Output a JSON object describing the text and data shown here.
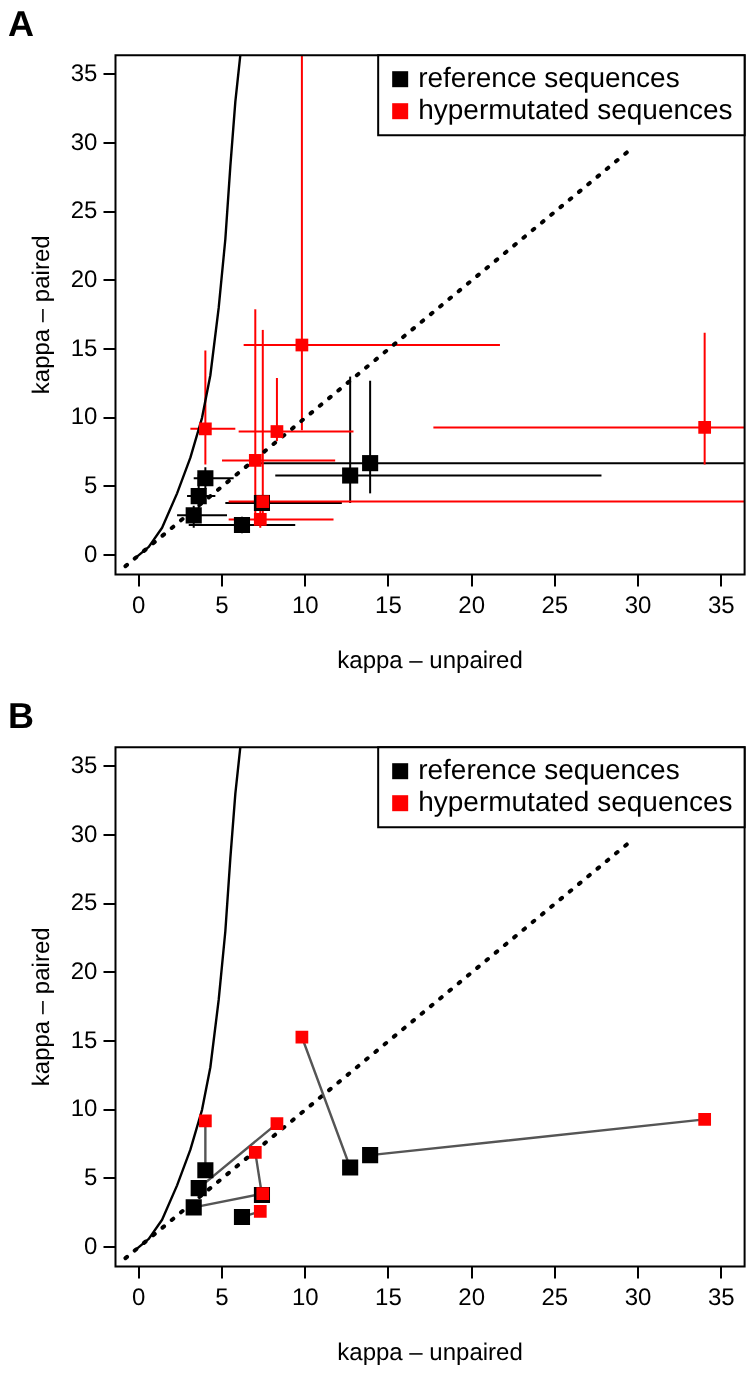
{
  "chart_data": [
    {
      "type": "scatter",
      "title": "A",
      "xlabel": "kappa – unpaired",
      "ylabel": "kappa – paired",
      "xlim": [
        -1.4,
        36.4
      ],
      "ylim": [
        -1.4,
        36.4
      ],
      "xticks": [
        0,
        5,
        10,
        15,
        20,
        25,
        30,
        35
      ],
      "yticks": [
        0,
        5,
        10,
        15,
        20,
        25,
        30,
        35
      ],
      "grid": false,
      "legend": "top right",
      "marker": "square",
      "series": [
        {
          "type": "line",
          "color": "#000000",
          "line_style": "solid",
          "marker": "none",
          "x": [
            -0.2,
            0.6,
            1.4,
            2.3,
            3.1,
            3.8,
            4.3,
            4.8,
            5.2,
            5.5,
            5.8,
            6.1
          ],
          "values": [
            -0.2,
            0.6,
            2,
            4.5,
            7.1,
            10,
            13.1,
            18,
            23,
            28.3,
            33,
            36.4
          ]
        },
        {
          "type": "line",
          "color": "#000000",
          "line_style": "dotted",
          "marker": "none",
          "x": [
            -0.8,
            29.6
          ],
          "values": [
            -0.8,
            29.6
          ]
        },
        {
          "name": "reference sequences",
          "color": "#000000",
          "x": [
            3.3,
            3.6,
            4.0,
            6.2,
            7.4,
            12.7,
            13.9
          ],
          "values": [
            2.9,
            4.3,
            5.6,
            2.2,
            3.8,
            5.8,
            6.7
          ],
          "errors": [
            [
              2.0,
              3.6
            ],
            [
              3.1,
              5.9
            ],
            [
              4.8,
              6.4
            ],
            [
              1.6,
              2.8
            ],
            null,
            [
              3.8,
              13.0
            ],
            [
              4.5,
              12.7
            ]
          ],
          "xerrors": [
            [
              2.3,
              5.3
            ],
            [
              2.9,
              4.6
            ],
            [
              3.3,
              5.7
            ],
            [
              3.0,
              9.4
            ],
            [
              5.2,
              12.2
            ],
            [
              8.2,
              27.8
            ],
            [
              7.3,
              36.4
            ]
          ]
        },
        {
          "name": "hypermutated sequences",
          "color": "#ff0000",
          "x": [
            7.45,
            8.3,
            4.0,
            7.3,
            7.0,
            9.8,
            34.0
          ],
          "values": [
            3.9,
            9.0,
            9.2,
            2.6,
            6.9,
            15.3,
            9.3
          ],
          "errors": [
            [
              2.5,
              16.4
            ],
            [
              8.3,
              12.9
            ],
            [
              6.6,
              14.9
            ],
            [
              2.0,
              3.3
            ],
            [
              3.0,
              17.9
            ],
            [
              9.1,
              36.4
            ],
            [
              6.6,
              16.2
            ]
          ],
          "xerrors": [
            [
              5.4,
              36.4
            ],
            [
              6.0,
              12.9
            ],
            [
              3.1,
              5.8
            ],
            [
              5.4,
              11.7
            ],
            [
              5.0,
              11.8
            ],
            [
              6.3,
              21.7
            ],
            [
              17.7,
              36.4
            ]
          ]
        }
      ]
    },
    {
      "type": "scatter",
      "title": "B",
      "xlabel": "kappa – unpaired",
      "ylabel": "kappa – paired",
      "xlim": [
        -1.4,
        36.4
      ],
      "ylim": [
        -1.4,
        36.4
      ],
      "xticks": [
        0,
        5,
        10,
        15,
        20,
        25,
        30,
        35
      ],
      "yticks": [
        0,
        5,
        10,
        15,
        20,
        25,
        30,
        35
      ],
      "grid": false,
      "legend": "top right",
      "marker": "square",
      "series": [
        {
          "type": "line",
          "color": "#000000",
          "line_style": "solid",
          "marker": "none",
          "x": [
            -0.2,
            0.6,
            1.4,
            2.3,
            3.1,
            3.8,
            4.3,
            4.8,
            5.2,
            5.5,
            5.8,
            6.1
          ],
          "values": [
            -0.2,
            0.6,
            2,
            4.5,
            7.1,
            10,
            13.1,
            18,
            23,
            28.3,
            33,
            36.4
          ]
        },
        {
          "type": "line",
          "color": "#000000",
          "line_style": "dotted",
          "marker": "none",
          "x": [
            -0.8,
            29.6
          ],
          "values": [
            -0.8,
            29.6
          ]
        },
        {
          "type": "line",
          "color": "#555555",
          "line_style": "solid",
          "marker": "none",
          "x": [
            3.3,
            7.45,
            null,
            3.6,
            8.3,
            null,
            4.0,
            4.0,
            null,
            6.2,
            7.3,
            null,
            7.4,
            7.0,
            null,
            12.7,
            9.8,
            null,
            13.9,
            34.0
          ],
          "values": [
            2.9,
            3.9,
            null,
            4.3,
            9.0,
            null,
            5.6,
            9.2,
            null,
            2.2,
            2.6,
            null,
            3.8,
            6.9,
            null,
            5.8,
            15.3,
            null,
            6.7,
            9.3
          ]
        },
        {
          "name": "reference sequences",
          "color": "#000000",
          "x": [
            3.3,
            3.6,
            4.0,
            6.2,
            7.4,
            12.7,
            13.9
          ],
          "values": [
            2.9,
            4.3,
            5.6,
            2.2,
            3.8,
            5.8,
            6.7
          ]
        },
        {
          "name": "hypermutated sequences",
          "color": "#ff0000",
          "x": [
            7.45,
            8.3,
            4.0,
            7.3,
            7.0,
            9.8,
            34.0
          ],
          "values": [
            3.9,
            9.0,
            9.2,
            2.6,
            6.9,
            15.3,
            9.3
          ]
        }
      ]
    }
  ]
}
